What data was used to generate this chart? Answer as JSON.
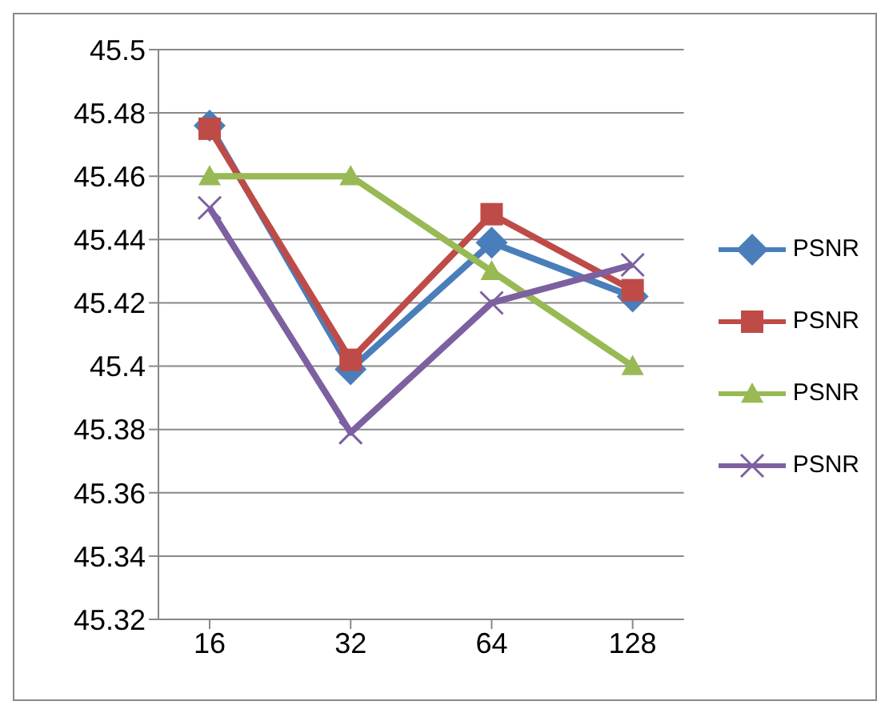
{
  "chart_data": {
    "type": "line",
    "categories": [
      "16",
      "32",
      "64",
      "128"
    ],
    "series": [
      {
        "name": "PSNR",
        "color": "#4a7ebb",
        "marker": "diamond",
        "values": [
          45.476,
          45.399,
          45.439,
          45.422
        ]
      },
      {
        "name": "PSNR",
        "color": "#be4b48",
        "marker": "square",
        "values": [
          45.475,
          45.402,
          45.448,
          45.424
        ]
      },
      {
        "name": "PSNR",
        "color": "#98b954",
        "marker": "triangle",
        "values": [
          45.46,
          45.46,
          45.43,
          45.4
        ]
      },
      {
        "name": "PSNR",
        "color": "#7d60a0",
        "marker": "cross",
        "values": [
          45.45,
          45.379,
          45.42,
          45.432
        ]
      }
    ],
    "ylim": [
      45.32,
      45.5
    ],
    "yticks": [
      45.32,
      45.34,
      45.36,
      45.38,
      45.4,
      45.42,
      45.44,
      45.46,
      45.48,
      45.5
    ],
    "grid": "y",
    "legend": "right",
    "line_style": "solid"
  }
}
